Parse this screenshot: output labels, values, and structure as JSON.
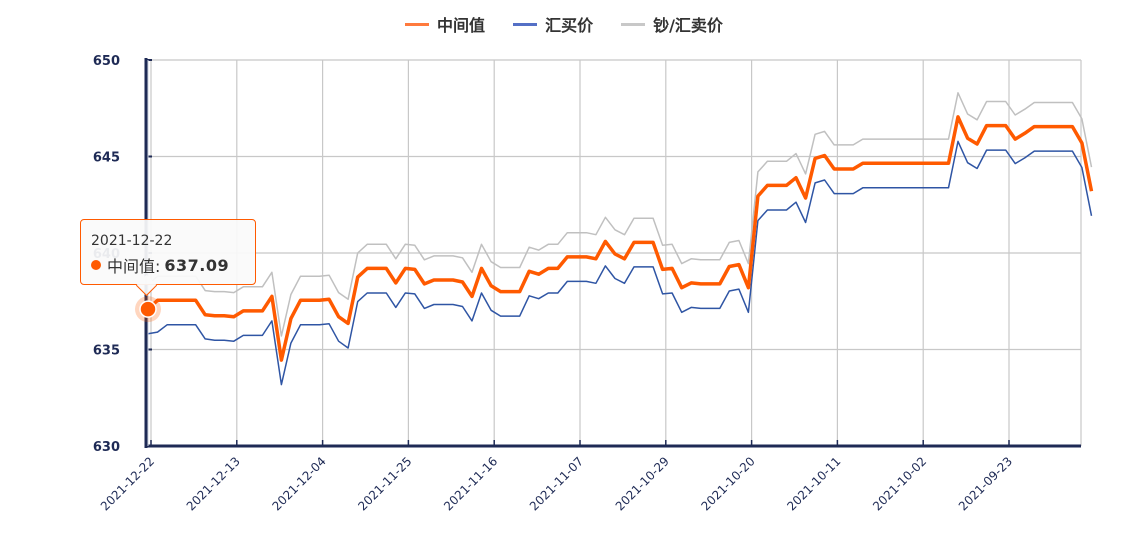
{
  "legend": {
    "items": [
      {
        "label": "中间值",
        "color": "#ff5a00"
      },
      {
        "label": "汇买价",
        "color": "#2f55a4"
      },
      {
        "label": "钞/汇卖价",
        "color": "#c0c0c0"
      }
    ]
  },
  "axes": {
    "y_ticks": [
      "650",
      "645",
      "640",
      "635",
      "630"
    ],
    "x_ticks": [
      "2021-12-22",
      "2021-12-13",
      "2021-12-04",
      "2021-11-25",
      "2021-11-16",
      "2021-11-07",
      "2021-10-29",
      "2021-10-20",
      "2021-10-11",
      "2021-10-02",
      "2021-09-23"
    ]
  },
  "tooltip": {
    "date": "2021-12-22",
    "series_label": "中间值:",
    "value": "637.09"
  },
  "colors": {
    "mid": "#ff5a00",
    "buy": "#2f55a4",
    "sell": "#c0c0c0",
    "axis": "#1e2a55",
    "grid": "#c8c8c8"
  },
  "chart_data": {
    "type": "line",
    "title": "",
    "xlabel": "",
    "ylabel": "",
    "ylim": [
      630,
      650
    ],
    "grid": true,
    "legend_position": "top-center",
    "x_tick_labels": [
      "2021-12-22",
      "2021-12-13",
      "2021-12-04",
      "2021-11-25",
      "2021-11-16",
      "2021-11-07",
      "2021-10-29",
      "2021-10-20",
      "2021-10-11",
      "2021-10-02",
      "2021-09-23"
    ],
    "points_per_tick": 9,
    "series": [
      {
        "name": "中间值",
        "color": "#ff5a00",
        "values": [
          637.09,
          637.55,
          637.55,
          637.55,
          637.55,
          637.55,
          636.8,
          636.75,
          636.75,
          636.7,
          637.0,
          637.0,
          637.0,
          637.75,
          634.45,
          636.6,
          637.55,
          637.55,
          637.55,
          637.6,
          636.7,
          636.35,
          638.75,
          639.2,
          639.2,
          639.2,
          638.45,
          639.2,
          639.15,
          638.4,
          638.6,
          638.6,
          638.6,
          638.5,
          637.75,
          639.2,
          638.3,
          638.0,
          638.0,
          638.0,
          639.05,
          638.9,
          639.2,
          639.2,
          639.8,
          639.8,
          639.8,
          639.7,
          640.6,
          639.95,
          639.7,
          640.55,
          640.55,
          640.55,
          639.15,
          639.2,
          638.2,
          638.45,
          638.4,
          638.4,
          638.4,
          639.3,
          639.4,
          638.2,
          642.95,
          643.5,
          643.5,
          643.5,
          643.9,
          642.85,
          644.9,
          645.05,
          644.35,
          644.35,
          644.35,
          644.65,
          644.65,
          644.65,
          644.65,
          644.65,
          644.65,
          644.65,
          644.65,
          644.65,
          644.65,
          647.05,
          645.95,
          645.65,
          646.6,
          646.6,
          646.6,
          645.9,
          646.2,
          646.55,
          646.55,
          646.55,
          646.55,
          646.55,
          645.7,
          643.2
        ]
      },
      {
        "name": "汇买价",
        "color": "#2f55a4",
        "values": [
          635.82,
          635.9,
          636.28,
          636.28,
          636.28,
          636.28,
          635.55,
          635.48,
          635.48,
          635.43,
          635.73,
          635.73,
          635.73,
          636.48,
          633.18,
          635.33,
          636.28,
          636.28,
          636.28,
          636.33,
          635.43,
          635.08,
          637.48,
          637.93,
          637.93,
          637.93,
          637.18,
          637.93,
          637.88,
          637.13,
          637.33,
          637.33,
          637.33,
          637.23,
          636.48,
          637.93,
          637.03,
          636.73,
          636.73,
          636.73,
          637.78,
          637.63,
          637.93,
          637.93,
          638.53,
          638.53,
          638.53,
          638.43,
          639.33,
          638.68,
          638.43,
          639.28,
          639.28,
          639.28,
          637.88,
          637.93,
          636.93,
          637.18,
          637.13,
          637.13,
          637.13,
          638.03,
          638.13,
          636.93,
          641.68,
          642.23,
          642.23,
          642.23,
          642.63,
          641.58,
          643.63,
          643.78,
          643.08,
          643.08,
          643.08,
          643.38,
          643.38,
          643.38,
          643.38,
          643.38,
          643.38,
          643.38,
          643.38,
          643.38,
          643.38,
          645.78,
          644.68,
          644.38,
          645.33,
          645.33,
          645.33,
          644.63,
          644.93,
          645.28,
          645.28,
          645.28,
          645.28,
          645.28,
          644.43,
          641.93
        ]
      },
      {
        "name": "钞/汇卖价",
        "color": "#c0c0c0",
        "values": [
          638.36,
          638.8,
          638.8,
          638.8,
          638.8,
          638.8,
          638.05,
          638.0,
          638.0,
          637.95,
          638.25,
          638.25,
          638.25,
          639.0,
          635.7,
          637.85,
          638.8,
          638.8,
          638.8,
          638.85,
          637.95,
          637.6,
          640.0,
          640.45,
          640.45,
          640.45,
          639.7,
          640.45,
          640.4,
          639.65,
          639.85,
          639.85,
          639.85,
          639.75,
          639.0,
          640.45,
          639.55,
          639.25,
          639.25,
          639.25,
          640.3,
          640.15,
          640.45,
          640.45,
          641.05,
          641.05,
          641.05,
          640.95,
          641.85,
          641.2,
          640.95,
          641.8,
          641.8,
          641.8,
          640.4,
          640.45,
          639.45,
          639.7,
          639.65,
          639.65,
          639.65,
          640.55,
          640.65,
          639.45,
          644.2,
          644.75,
          644.75,
          644.75,
          645.15,
          644.1,
          646.15,
          646.3,
          645.6,
          645.6,
          645.6,
          645.9,
          645.9,
          645.9,
          645.9,
          645.9,
          645.9,
          645.9,
          645.9,
          645.9,
          645.9,
          648.3,
          647.2,
          646.9,
          647.85,
          647.85,
          647.85,
          647.15,
          647.45,
          647.8,
          647.8,
          647.8,
          647.8,
          647.8,
          646.95,
          644.45
        ]
      }
    ]
  }
}
